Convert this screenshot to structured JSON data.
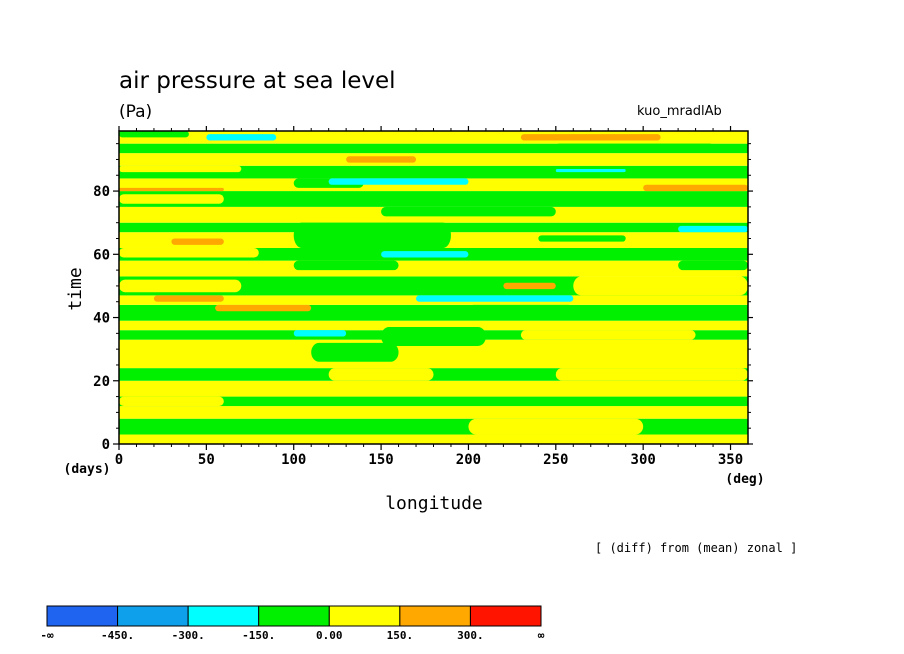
{
  "title": "air pressure at sea level",
  "units": "(Pa)",
  "experiment": "kuo_mradlAb",
  "note": "[ (diff) from (mean) zonal ]",
  "chart_data": {
    "type": "heatmap",
    "xlabel": "longitude",
    "ylabel": "time",
    "x_unit": "(deg)",
    "y_unit": "(days)",
    "xlim": [
      0,
      360
    ],
    "ylim": [
      0,
      99
    ],
    "xticks": [
      0,
      50,
      100,
      150,
      200,
      250,
      300,
      350
    ],
    "yticks": [
      0,
      20,
      40,
      60,
      80
    ],
    "colorbar": {
      "labels": [
        "-∞",
        "-450.",
        "-300.",
        "-150.",
        "0.00",
        "150.",
        "300.",
        "∞"
      ],
      "colors": [
        "#1e64f0",
        "#0fa0ec",
        "#00ffff",
        "#00f000",
        "#ffff00",
        "#ffa800",
        "#ff1400"
      ]
    },
    "bands": [
      {
        "t0": 0,
        "t1": 3,
        "value": 80
      },
      {
        "t0": 3,
        "t1": 8,
        "value": -60
      },
      {
        "t0": 8,
        "t1": 12,
        "value": 60
      },
      {
        "t0": 12,
        "t1": 15,
        "value": -50
      },
      {
        "t0": 15,
        "t1": 20,
        "value": 40
      },
      {
        "t0": 20,
        "t1": 24,
        "value": -80
      },
      {
        "t0": 24,
        "t1": 33,
        "value": 90
      },
      {
        "t0": 33,
        "t1": 36,
        "value": -40
      },
      {
        "t0": 36,
        "t1": 39,
        "value": 70
      },
      {
        "t0": 39,
        "t1": 44,
        "value": -70
      },
      {
        "t0": 44,
        "t1": 47,
        "value": 100
      },
      {
        "t0": 47,
        "t1": 53,
        "value": -60
      },
      {
        "t0": 53,
        "t1": 58,
        "value": 60
      },
      {
        "t0": 58,
        "t1": 62,
        "value": -90
      },
      {
        "t0": 62,
        "t1": 67,
        "value": 80
      },
      {
        "t0": 67,
        "t1": 70,
        "value": -70
      },
      {
        "t0": 70,
        "t1": 75,
        "value": 50
      },
      {
        "t0": 75,
        "t1": 80,
        "value": -60
      },
      {
        "t0": 80,
        "t1": 84,
        "value": 40
      },
      {
        "t0": 84,
        "t1": 88,
        "value": -100
      },
      {
        "t0": 88,
        "t1": 92,
        "value": 110
      },
      {
        "t0": 92,
        "t1": 95,
        "value": -50
      },
      {
        "t0": 95,
        "t1": 99,
        "value": 70
      }
    ],
    "patches": [
      {
        "lon": [
          200,
          300
        ],
        "t": [
          3,
          8
        ],
        "value": 60
      },
      {
        "lon": [
          0,
          60
        ],
        "t": [
          12,
          15
        ],
        "value": 40
      },
      {
        "lon": [
          120,
          180
        ],
        "t": [
          20,
          24
        ],
        "value": 40
      },
      {
        "lon": [
          250,
          360
        ],
        "t": [
          20,
          24
        ],
        "value": 50
      },
      {
        "lon": [
          110,
          160
        ],
        "t": [
          26,
          32
        ],
        "value": -60
      },
      {
        "lon": [
          150,
          210
        ],
        "t": [
          31,
          37
        ],
        "value": -50
      },
      {
        "lon": [
          230,
          330
        ],
        "t": [
          33,
          36
        ],
        "value": 60
      },
      {
        "lon": [
          100,
          130
        ],
        "t": [
          34,
          36
        ],
        "value": -170
      },
      {
        "lon": [
          200,
          260
        ],
        "t": [
          41,
          44
        ],
        "value": -40
      },
      {
        "lon": [
          55,
          110
        ],
        "t": [
          42,
          44
        ],
        "value": 180
      },
      {
        "lon": [
          20,
          60
        ],
        "t": [
          45,
          47
        ],
        "value": 170
      },
      {
        "lon": [
          170,
          260
        ],
        "t": [
          45,
          47
        ],
        "value": -180
      },
      {
        "lon": [
          260,
          360
        ],
        "t": [
          47,
          53
        ],
        "value": 60
      },
      {
        "lon": [
          0,
          70
        ],
        "t": [
          48,
          52
        ],
        "value": 60
      },
      {
        "lon": [
          220,
          250
        ],
        "t": [
          49,
          51
        ],
        "value": 170
      },
      {
        "lon": [
          100,
          160
        ],
        "t": [
          55,
          58
        ],
        "value": -70
      },
      {
        "lon": [
          150,
          200
        ],
        "t": [
          59,
          61
        ],
        "value": -170
      },
      {
        "lon": [
          320,
          360
        ],
        "t": [
          55,
          58
        ],
        "value": -50
      },
      {
        "lon": [
          0,
          80
        ],
        "t": [
          59,
          62
        ],
        "value": 40
      },
      {
        "lon": [
          30,
          60
        ],
        "t": [
          63,
          65
        ],
        "value": 170
      },
      {
        "lon": [
          100,
          190
        ],
        "t": [
          62,
          70
        ],
        "value": -60
      },
      {
        "lon": [
          240,
          290
        ],
        "t": [
          64,
          66
        ],
        "value": -40
      },
      {
        "lon": [
          320,
          360
        ],
        "t": [
          67,
          69
        ],
        "value": -180
      },
      {
        "lon": [
          150,
          250
        ],
        "t": [
          72,
          75
        ],
        "value": -60
      },
      {
        "lon": [
          0,
          60
        ],
        "t": [
          76,
          79
        ],
        "value": 40
      },
      {
        "lon": [
          0,
          60
        ],
        "t": [
          80,
          81
        ],
        "value": 170
      },
      {
        "lon": [
          100,
          140
        ],
        "t": [
          81,
          84
        ],
        "value": -40
      },
      {
        "lon": [
          120,
          200
        ],
        "t": [
          82,
          84
        ],
        "value": -170
      },
      {
        "lon": [
          300,
          360
        ],
        "t": [
          80,
          82
        ],
        "value": 170
      },
      {
        "lon": [
          0,
          70
        ],
        "t": [
          86,
          88
        ],
        "value": 50
      },
      {
        "lon": [
          250,
          290
        ],
        "t": [
          86,
          87
        ],
        "value": -160
      },
      {
        "lon": [
          130,
          170
        ],
        "t": [
          89,
          91
        ],
        "value": 160
      },
      {
        "lon": [
          250,
          340
        ],
        "t": [
          93,
          95
        ],
        "value": -40
      },
      {
        "lon": [
          230,
          310
        ],
        "t": [
          96,
          98
        ],
        "value": 170
      },
      {
        "lon": [
          50,
          90
        ],
        "t": [
          96,
          98
        ],
        "value": -170
      },
      {
        "lon": [
          0,
          40
        ],
        "t": [
          97,
          99
        ],
        "value": -40
      }
    ]
  }
}
